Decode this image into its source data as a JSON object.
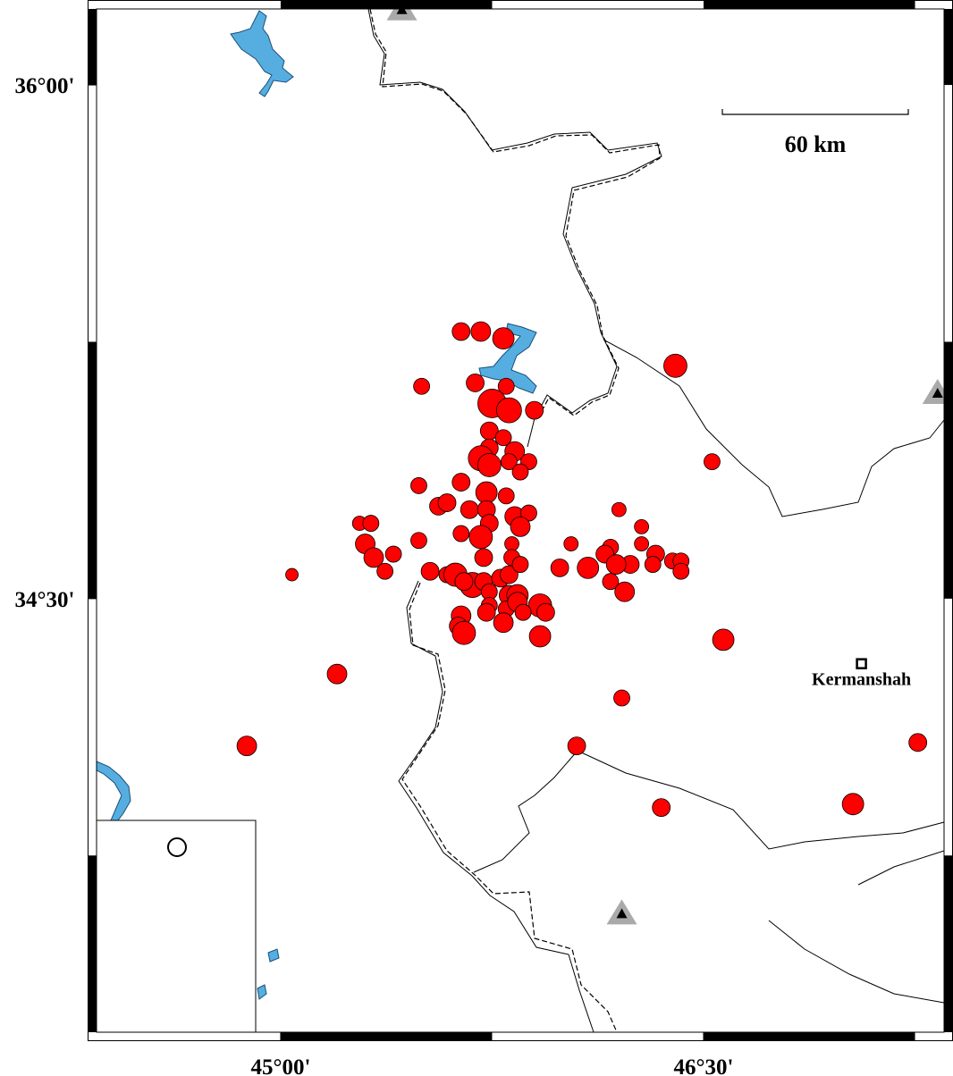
{
  "map": {
    "xlim": [
      44.347,
      47.353
    ],
    "ylim": [
      33.234,
      36.222
    ],
    "xticks": [
      {
        "value": 45,
        "label": "45°00'"
      },
      {
        "value": 46.5,
        "label": "46°30'"
      }
    ],
    "yticks": [
      {
        "value": 34.5,
        "label": "34°30'"
      },
      {
        "value": 36,
        "label": "36°00'"
      }
    ],
    "scale_bar": {
      "label": "60 km"
    },
    "city": {
      "name": "Kermanshah",
      "lon": 47.06,
      "lat": 34.31
    },
    "stations": {
      "lon": [
        45.43,
        47.33,
        46.21
      ],
      "lat": [
        36.22,
        35.1,
        33.58
      ]
    },
    "events": {
      "color": "#ff0000",
      "lon": [
        45.64,
        45.71,
        45.79,
        46.4,
        45.5,
        45.69,
        45.8,
        45.75,
        45.81,
        45.9,
        45.74,
        45.79,
        45.74,
        45.83,
        45.71,
        45.74,
        45.81,
        45.88,
        45.85,
        46.53,
        45.49,
        45.64,
        45.73,
        45.8,
        45.56,
        45.59,
        45.67,
        45.73,
        45.83,
        45.88,
        45.28,
        45.32,
        45.74,
        45.85,
        46.2,
        46.28,
        45.64,
        45.71,
        45.49,
        45.3,
        45.82,
        46.03,
        46.17,
        46.28,
        45.33,
        45.4,
        45.72,
        45.82,
        46.15,
        46.33,
        46.39,
        46.42,
        46.42,
        46.32,
        46.24,
        46.19,
        46.09,
        45.99,
        45.04,
        45.37,
        45.53,
        45.59,
        45.62,
        45.68,
        45.65,
        45.72,
        45.78,
        45.81,
        45.85,
        45.74,
        45.81,
        45.84,
        46.17,
        46.22,
        45.74,
        45.8,
        45.84,
        45.92,
        45.94,
        45.73,
        45.86,
        45.64,
        45.63,
        45.79,
        45.65,
        45.92,
        46.57,
        45.2,
        46.21,
        44.88,
        46.05,
        47.26,
        46.35,
        47.03
      ],
      "lat": [
        35.28,
        35.28,
        35.26,
        35.18,
        35.12,
        35.13,
        35.12,
        35.07,
        35.05,
        35.05,
        34.99,
        34.97,
        34.94,
        34.93,
        34.91,
        34.89,
        34.9,
        34.9,
        34.87,
        34.9,
        34.83,
        34.84,
        34.81,
        34.8,
        34.77,
        34.78,
        34.76,
        34.76,
        34.74,
        34.75,
        34.72,
        34.72,
        34.72,
        34.71,
        34.76,
        34.71,
        34.69,
        34.68,
        34.67,
        34.66,
        34.66,
        34.66,
        34.65,
        34.66,
        34.62,
        34.63,
        34.62,
        34.62,
        34.63,
        34.63,
        34.61,
        34.61,
        34.58,
        34.6,
        34.6,
        34.6,
        34.59,
        34.59,
        34.57,
        34.58,
        34.58,
        34.57,
        34.57,
        34.54,
        34.55,
        34.55,
        34.56,
        34.57,
        34.6,
        34.52,
        34.51,
        34.51,
        34.55,
        34.52,
        34.48,
        34.47,
        34.49,
        34.48,
        34.46,
        34.46,
        34.46,
        34.45,
        34.42,
        34.43,
        34.4,
        34.39,
        34.38,
        34.28,
        34.21,
        34.07,
        34.07,
        34.08,
        33.89,
        33.9
      ],
      "mag": [
        4.4,
        4.6,
        4.8,
        5.0,
        4.2,
        4.4,
        4.2,
        5.6,
        5.2,
        4.4,
        4.4,
        4.2,
        4.4,
        4.6,
        5.2,
        5.0,
        4.2,
        4.2,
        4.2,
        4.2,
        4.2,
        4.4,
        4.8,
        4.2,
        4.4,
        4.4,
        4.4,
        4.4,
        4.6,
        4.2,
        4.0,
        4.2,
        4.4,
        4.6,
        4.0,
        4.0,
        4.2,
        5.0,
        4.2,
        4.6,
        4.0,
        4.0,
        4.2,
        4.0,
        4.6,
        4.2,
        4.4,
        4.2,
        4.4,
        4.4,
        4.2,
        4.2,
        4.2,
        4.2,
        4.4,
        4.6,
        4.8,
        4.4,
        3.8,
        4.2,
        4.4,
        4.2,
        5.0,
        5.2,
        4.4,
        4.4,
        4.4,
        4.4,
        4.2,
        4.2,
        4.6,
        4.8,
        4.2,
        4.6,
        4.2,
        4.2,
        4.6,
        5.0,
        4.4,
        4.4,
        4.2,
        4.6,
        4.4,
        4.6,
        5.0,
        4.8,
        4.8,
        4.6,
        4.2,
        4.6,
        4.4,
        4.4,
        4.4,
        4.8
      ]
    }
  }
}
